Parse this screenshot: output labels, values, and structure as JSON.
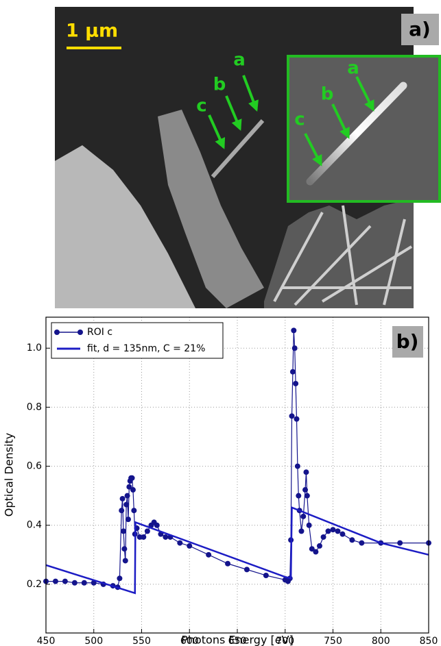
{
  "panel_a": {
    "label": "a)",
    "scale_bar": "1 µm",
    "arrow_labels": [
      "a",
      "b",
      "c"
    ],
    "inset_arrow_labels": [
      "a",
      "b",
      "c"
    ]
  },
  "chart_data": {
    "type": "line",
    "panel_label": "b)",
    "x_label": "Photons Energy [eV]",
    "y_label": "Optical Density",
    "xlim": [
      450,
      850
    ],
    "ylim": [
      0.035,
      1.105
    ],
    "xticks": [
      450,
      500,
      550,
      600,
      650,
      700,
      750,
      800,
      850
    ],
    "yticks": [
      0.2,
      0.4,
      0.6,
      0.8,
      {
        "value": 1,
        "label": "1.0"
      }
    ],
    "grid": true,
    "legend": "upper left",
    "series": [
      {
        "name": "ROI c",
        "color": "#14148c",
        "markers": true,
        "x": [
          450,
          460,
          470,
          480,
          490,
          500,
          510,
          520,
          525,
          527,
          529,
          530,
          531,
          532,
          533,
          534,
          535,
          536,
          537,
          538,
          539,
          540,
          541,
          542,
          543,
          545,
          548,
          552,
          556,
          560,
          563,
          566,
          570,
          575,
          580,
          590,
          600,
          620,
          640,
          660,
          680,
          700,
          703,
          705,
          706,
          707,
          708,
          709,
          710,
          711,
          712,
          713,
          714,
          715,
          717,
          719,
          721,
          722,
          723,
          725,
          728,
          732,
          736,
          740,
          745,
          750,
          755,
          760,
          770,
          780,
          800,
          820,
          850
        ],
        "values": [
          0.21,
          0.21,
          0.21,
          0.205,
          0.205,
          0.205,
          0.2,
          0.195,
          0.19,
          0.22,
          0.45,
          0.49,
          0.38,
          0.32,
          0.28,
          0.47,
          0.5,
          0.42,
          0.53,
          0.55,
          0.56,
          0.56,
          0.52,
          0.45,
          0.37,
          0.39,
          0.36,
          0.36,
          0.38,
          0.4,
          0.41,
          0.4,
          0.37,
          0.36,
          0.36,
          0.34,
          0.33,
          0.3,
          0.27,
          0.25,
          0.23,
          0.215,
          0.21,
          0.22,
          0.35,
          0.77,
          0.92,
          1.06,
          1.0,
          0.88,
          0.76,
          0.6,
          0.5,
          0.45,
          0.38,
          0.43,
          0.52,
          0.58,
          0.5,
          0.4,
          0.32,
          0.31,
          0.33,
          0.36,
          0.38,
          0.385,
          0.38,
          0.37,
          0.35,
          0.34,
          0.34,
          0.34,
          0.34
        ]
      },
      {
        "name": "fit, d = 135nm, C = 21%",
        "color": "#1c1cc4",
        "markers": false,
        "x": [
          450,
          543,
          543.5,
          700,
          706,
          707,
          800,
          850
        ],
        "values": [
          0.265,
          0.17,
          0.41,
          0.225,
          0.22,
          0.46,
          0.34,
          0.3
        ]
      }
    ]
  }
}
